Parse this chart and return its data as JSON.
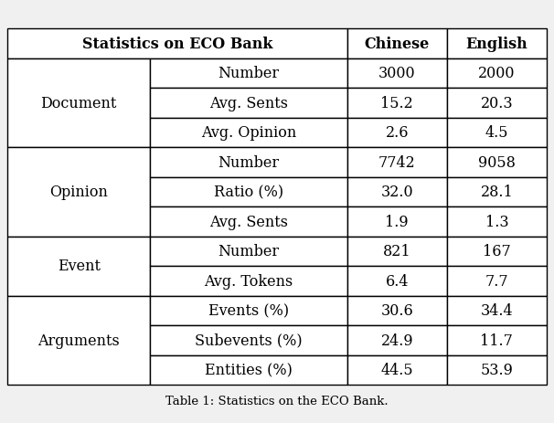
{
  "title": "Statistics on ECO Bank",
  "col_headers": [
    "Statistics on ECO Bank",
    "Chinese",
    "English"
  ],
  "sections": [
    {
      "label": "Document",
      "rows": [
        [
          "Number",
          "3000",
          "2000"
        ],
        [
          "Avg. Sents",
          "15.2",
          "20.3"
        ],
        [
          "Avg. Opinion",
          "2.6",
          "4.5"
        ]
      ]
    },
    {
      "label": "Opinion",
      "rows": [
        [
          "Number",
          "7742",
          "9058"
        ],
        [
          "Ratio (%)",
          "32.0",
          "28.1"
        ],
        [
          "Avg. Sents",
          "1.9",
          "1.3"
        ]
      ]
    },
    {
      "label": "Event",
      "rows": [
        [
          "Number",
          "821",
          "167"
        ],
        [
          "Avg. Tokens",
          "6.4",
          "7.7"
        ]
      ]
    },
    {
      "label": "Arguments",
      "rows": [
        [
          "Events (%)",
          "30.6",
          "34.4"
        ],
        [
          "Subevents (%)",
          "24.9",
          "11.7"
        ],
        [
          "Entities (%)",
          "44.5",
          "53.9"
        ]
      ]
    }
  ],
  "header_bg": "#ffffff",
  "cell_bg": "#ffffff",
  "line_color": "#000000",
  "text_color": "#000000",
  "header_fontsize": 11.5,
  "cell_fontsize": 11.5,
  "label_fontsize": 11.5,
  "caption": "Table 1: Statistics on the ECO Bank."
}
